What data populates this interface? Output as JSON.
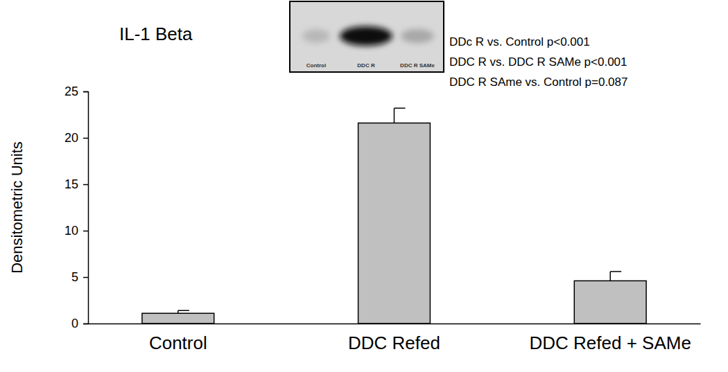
{
  "chart_data": {
    "type": "bar",
    "title": "IL-1 Beta",
    "y_label": "Densitometric Units",
    "categories": [
      "Control",
      "DDC Refed",
      "DDC Refed + SAMe"
    ],
    "values": [
      1.1,
      21.6,
      4.6
    ],
    "errors": [
      0.3,
      1.6,
      1.0
    ],
    "color": "#c0c0c0",
    "ylim": [
      0,
      25
    ],
    "yticks": [
      0,
      5,
      10,
      15,
      20,
      25
    ],
    "grid": false,
    "annotations": [
      "DDc R vs. Control p<0.001",
      "DDC R vs. DDC R SAMe p<0.001",
      "DDC R SAme vs. Control p=0.087"
    ],
    "blot_labels": [
      "Control",
      "DDC R",
      "DDC R SAMe"
    ]
  }
}
